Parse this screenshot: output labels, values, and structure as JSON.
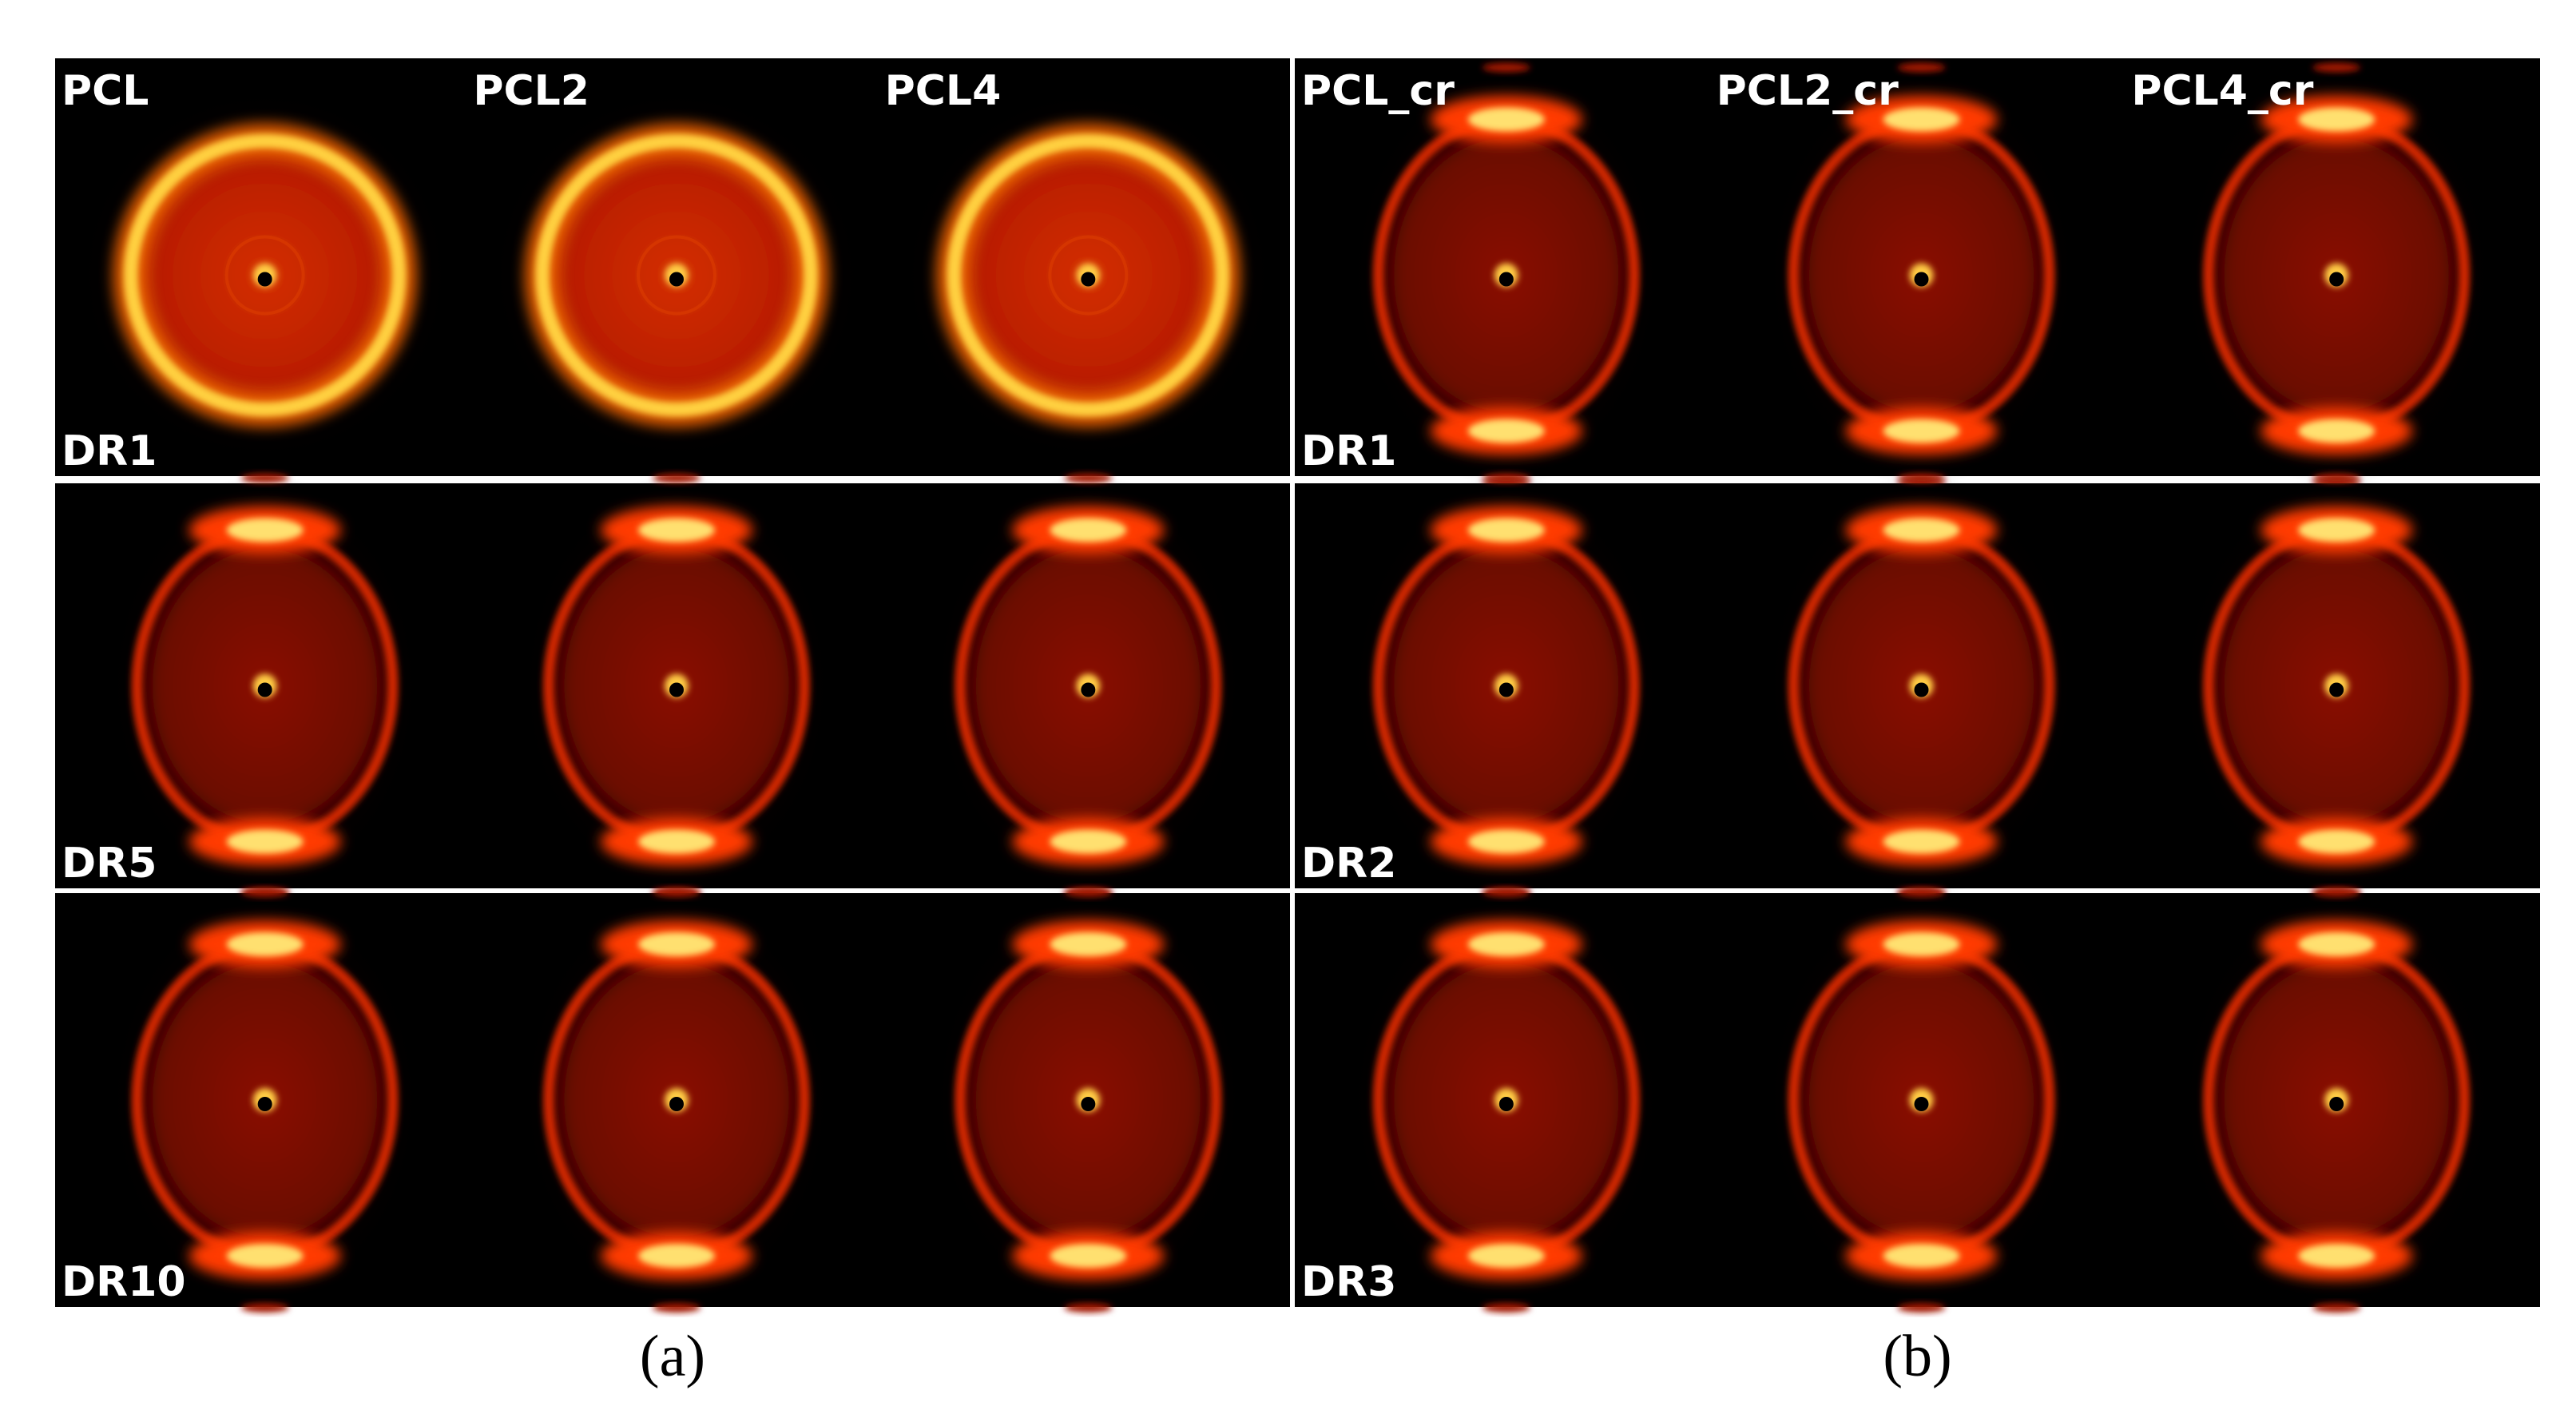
{
  "panels": [
    {
      "caption": "(a)",
      "columns": [
        "PCL",
        "PCL2",
        "PCL4"
      ],
      "rows": [
        "DR1",
        "DR5",
        "DR10"
      ]
    },
    {
      "caption": "(b)",
      "columns": [
        "PCL_cr",
        "PCL2_cr",
        "PCL4_cr"
      ],
      "rows": [
        "DR1",
        "DR2",
        "DR3"
      ]
    }
  ]
}
